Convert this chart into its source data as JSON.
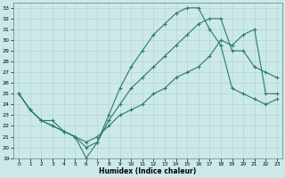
{
  "xlabel": "Humidex (Indice chaleur)",
  "ylabel": "",
  "bg_color": "#cce8e8",
  "grid_color": "#b0d8d8",
  "line_color": "#2a7a6e",
  "ylim": [
    19,
    33.5
  ],
  "xlim": [
    -0.5,
    23.5
  ],
  "yticks": [
    19,
    20,
    21,
    22,
    23,
    24,
    25,
    26,
    27,
    28,
    29,
    30,
    31,
    32,
    33
  ],
  "xticks": [
    0,
    1,
    2,
    3,
    4,
    5,
    6,
    7,
    8,
    9,
    10,
    11,
    12,
    13,
    14,
    15,
    16,
    17,
    18,
    19,
    20,
    21,
    22,
    23
  ],
  "line1_x": [
    0,
    1,
    2,
    3,
    4,
    5,
    6,
    7,
    8,
    9,
    10,
    11,
    12,
    13,
    14,
    15,
    16,
    17,
    18,
    19,
    20,
    21,
    22,
    23
  ],
  "line1_y": [
    25.0,
    23.5,
    22.5,
    22.5,
    21.5,
    21.0,
    19.0,
    20.5,
    23.0,
    25.5,
    27.5,
    29.0,
    30.5,
    31.5,
    32.5,
    33.0,
    33.0,
    31.0,
    29.5,
    25.5,
    25.0,
    24.5,
    24.0,
    24.5
  ],
  "line2_x": [
    0,
    1,
    2,
    3,
    4,
    5,
    6,
    7,
    8,
    9,
    10,
    11,
    12,
    13,
    14,
    15,
    16,
    17,
    18,
    19,
    20,
    21,
    22,
    23
  ],
  "line2_y": [
    25.0,
    23.5,
    22.5,
    22.0,
    21.5,
    21.0,
    20.0,
    20.5,
    22.5,
    24.0,
    25.5,
    26.5,
    27.5,
    28.5,
    29.5,
    30.5,
    31.5,
    32.0,
    32.0,
    29.0,
    29.0,
    27.5,
    27.0,
    26.5
  ],
  "line3_x": [
    0,
    1,
    2,
    3,
    4,
    5,
    6,
    7,
    8,
    9,
    10,
    11,
    12,
    13,
    14,
    15,
    16,
    17,
    18,
    19,
    20,
    21,
    22,
    23
  ],
  "line3_y": [
    25.0,
    23.5,
    22.5,
    22.0,
    21.5,
    21.0,
    20.5,
    21.0,
    22.0,
    23.0,
    23.5,
    24.0,
    25.0,
    25.5,
    26.5,
    27.0,
    27.5,
    28.5,
    30.0,
    29.5,
    30.5,
    31.0,
    25.0,
    25.0
  ]
}
